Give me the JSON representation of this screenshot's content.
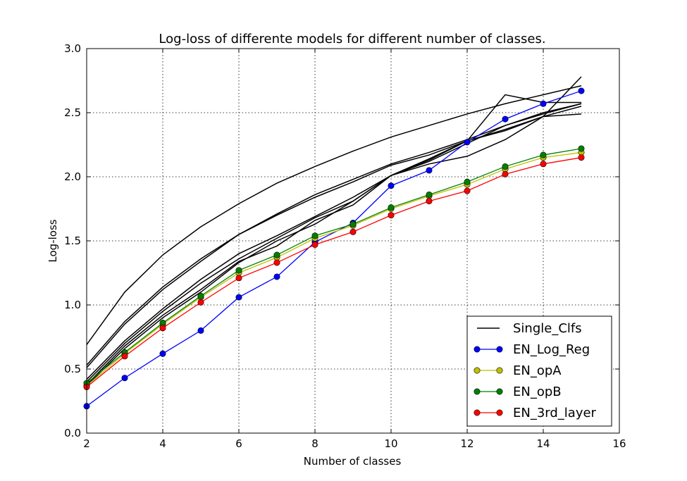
{
  "chart_data": {
    "type": "line",
    "title": "Log-loss of differente models for different number of classes.",
    "xlabel": "Number of classes",
    "ylabel": "Log-loss",
    "xlim": [
      2,
      16
    ],
    "ylim": [
      0.0,
      3.0
    ],
    "xticks": [
      "2",
      "4",
      "6",
      "8",
      "10",
      "12",
      "14",
      "16"
    ],
    "yticks": [
      "0.0",
      "0.5",
      "1.0",
      "1.5",
      "2.0",
      "2.5",
      "3.0"
    ],
    "grid": true,
    "legend_position": "bottom-right",
    "x": [
      2,
      3,
      4,
      5,
      6,
      7,
      8,
      9,
      10,
      11,
      12,
      13,
      14,
      15
    ],
    "single_clfs": {
      "name": "Single_Clfs",
      "color": "#000000",
      "lines": [
        [
          0.69,
          1.1,
          1.39,
          1.61,
          1.79,
          1.95,
          2.08,
          2.2,
          2.31,
          2.4,
          2.49,
          2.57,
          2.64,
          2.71
        ],
        [
          0.53,
          0.87,
          1.14,
          1.36,
          1.55,
          1.7,
          1.84,
          1.96,
          2.09,
          2.17,
          2.28,
          2.37,
          2.47,
          2.55
        ],
        [
          0.51,
          0.85,
          1.12,
          1.34,
          1.55,
          1.71,
          1.86,
          1.98,
          2.1,
          2.19,
          2.29,
          2.4,
          2.5,
          2.57
        ],
        [
          0.42,
          0.72,
          0.97,
          1.2,
          1.4,
          1.54,
          1.69,
          1.84,
          2.01,
          2.12,
          2.26,
          2.4,
          2.49,
          2.57
        ],
        [
          0.4,
          0.7,
          0.95,
          1.17,
          1.36,
          1.52,
          1.68,
          1.81,
          2.01,
          2.1,
          2.16,
          2.29,
          2.47,
          2.78
        ],
        [
          0.38,
          0.68,
          0.92,
          1.12,
          1.34,
          1.46,
          1.66,
          1.78,
          2.01,
          2.14,
          2.28,
          2.64,
          2.58,
          2.58
        ],
        [
          0.37,
          0.66,
          0.9,
          1.1,
          1.33,
          1.5,
          1.63,
          1.81,
          2.01,
          2.13,
          2.28,
          2.36,
          2.47,
          2.49
        ]
      ]
    },
    "series": [
      {
        "name": "EN_Log_Reg",
        "color": "#0000ff",
        "values": [
          0.21,
          0.43,
          0.62,
          0.8,
          1.06,
          1.22,
          1.49,
          1.64,
          1.93,
          2.05,
          2.27,
          2.45,
          2.57,
          2.67
        ]
      },
      {
        "name": "EN_opA",
        "color": "#bfbf00",
        "values": [
          0.37,
          0.62,
          0.85,
          1.06,
          1.25,
          1.37,
          1.52,
          1.62,
          1.75,
          1.85,
          1.94,
          2.06,
          2.15,
          2.19
        ]
      },
      {
        "name": "EN_opB",
        "color": "#008000",
        "values": [
          0.39,
          0.63,
          0.86,
          1.07,
          1.27,
          1.39,
          1.54,
          1.63,
          1.76,
          1.86,
          1.96,
          2.08,
          2.17,
          2.22
        ]
      },
      {
        "name": "EN_3rd_layer",
        "color": "#ff0000",
        "values": [
          0.36,
          0.6,
          0.82,
          1.02,
          1.21,
          1.33,
          1.47,
          1.57,
          1.7,
          1.81,
          1.89,
          2.02,
          2.1,
          2.15
        ]
      }
    ]
  }
}
